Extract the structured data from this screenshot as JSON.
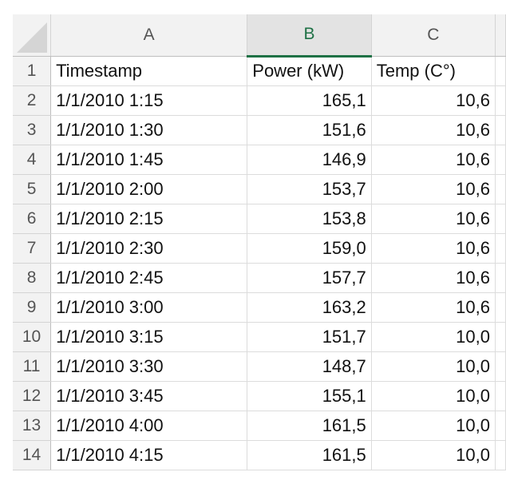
{
  "columns": [
    "A",
    "B",
    "C"
  ],
  "selected_column": "B",
  "colors": {
    "selected_header_accent": "#1e7145",
    "grid": "#dcdcdc",
    "header_bg": "#f2f2f2"
  },
  "rows": [
    {
      "n": "1",
      "a": "Timestamp",
      "b": "Power (kW)",
      "c": "Temp (C°)"
    },
    {
      "n": "2",
      "a": "1/1/2010 1:15",
      "b": "165,1",
      "c": "10,6"
    },
    {
      "n": "3",
      "a": "1/1/2010 1:30",
      "b": "151,6",
      "c": "10,6"
    },
    {
      "n": "4",
      "a": "1/1/2010 1:45",
      "b": "146,9",
      "c": "10,6"
    },
    {
      "n": "5",
      "a": "1/1/2010 2:00",
      "b": "153,7",
      "c": "10,6"
    },
    {
      "n": "6",
      "a": "1/1/2010 2:15",
      "b": "153,8",
      "c": "10,6"
    },
    {
      "n": "7",
      "a": "1/1/2010 2:30",
      "b": "159,0",
      "c": "10,6"
    },
    {
      "n": "8",
      "a": "1/1/2010 2:45",
      "b": "157,7",
      "c": "10,6"
    },
    {
      "n": "9",
      "a": "1/1/2010 3:00",
      "b": "163,2",
      "c": "10,6"
    },
    {
      "n": "10",
      "a": "1/1/2010 3:15",
      "b": "151,7",
      "c": "10,0"
    },
    {
      "n": "11",
      "a": "1/1/2010 3:30",
      "b": "148,7",
      "c": "10,0"
    },
    {
      "n": "12",
      "a": "1/1/2010 3:45",
      "b": "155,1",
      "c": "10,0"
    },
    {
      "n": "13",
      "a": "1/1/2010 4:00",
      "b": "161,5",
      "c": "10,0"
    },
    {
      "n": "14",
      "a": "1/1/2010 4:15",
      "b": "161,5",
      "c": "10,0"
    }
  ]
}
